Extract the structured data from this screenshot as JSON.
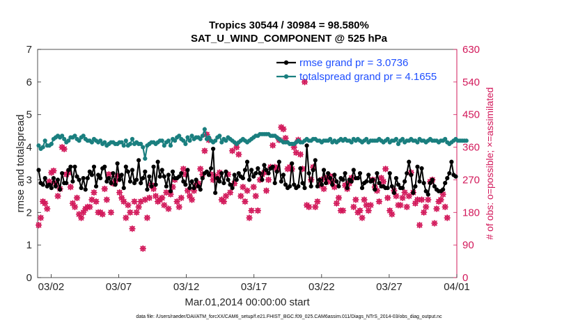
{
  "chart_data": {
    "type": "line",
    "title": "Tropics 30544 / 30984 = 98.580%",
    "subtitle": "SAT_U_WIND_COMPONENT @ 525 hPa",
    "xlabel": "Mar.01,2014 00:00:00 start",
    "ylabel_left": "rmse and totalspread",
    "ylabel_right": "# of obs: o=possible; ×=assimilated",
    "ylim_left": [
      0,
      7
    ],
    "ylim_right": [
      0,
      630
    ],
    "xlim": [
      0,
      31.0
    ],
    "left_ticks": [
      "0",
      "1",
      "2",
      "3",
      "4",
      "5",
      "6",
      "7"
    ],
    "right_ticks": [
      "0",
      "90",
      "180",
      "270",
      "360",
      "450",
      "540",
      "630"
    ],
    "x_ticks": [
      {
        "label": "03/02",
        "value": 1.0
      },
      {
        "label": "03/07",
        "value": 6.0
      },
      {
        "label": "03/12",
        "value": 11.0
      },
      {
        "label": "03/17",
        "value": 16.0
      },
      {
        "label": "03/22",
        "value": 21.0
      },
      {
        "label": "03/27",
        "value": 26.0
      },
      {
        "label": "04/01",
        "value": 31.0
      }
    ],
    "series": [
      {
        "name": "rmse grand pr = 3.0736",
        "color": "#000000",
        "values": [
          3.3,
          2.9,
          2.85,
          3.05,
          2.8,
          2.85,
          2.75,
          3.05,
          2.8,
          3.0,
          2.7,
          3.2,
          2.9,
          2.9,
          3.3,
          3.4,
          2.95,
          3.4,
          3.1,
          3.0,
          2.75,
          3.05,
          2.7,
          3.05,
          3.25,
          3.15,
          3.4,
          2.8,
          3.15,
          3.05,
          3.35,
          3.4,
          2.95,
          3.05,
          2.9,
          3.2,
          2.85,
          3.5,
          3.0,
          3.15,
          2.75,
          3.4,
          3.25,
          2.95,
          3.3,
          2.9,
          3.0,
          3.6,
          2.9,
          3.05,
          3.25,
          2.7,
          3.1,
          2.8,
          3.4,
          2.85,
          3.55,
          3.1,
          3.3,
          3.1,
          2.8,
          3.15,
          2.65,
          3.25,
          3.05,
          3.05,
          3.1,
          3.2,
          2.95,
          2.85,
          3.3,
          2.75,
          2.95,
          2.75,
          3.0,
          2.8,
          2.7,
          3.05,
          3.2,
          3.25,
          3.15,
          3.35,
          3.95,
          2.6,
          3.05,
          2.95,
          3.2,
          2.9,
          3.25,
          3.0,
          2.85,
          2.75,
          3.15,
          3.0,
          3.2,
          3.1,
          3.05,
          3.3,
          3.55,
          3.0,
          3.3,
          3.1,
          3.2,
          3.35,
          3.2,
          3.0,
          3.45,
          3.3,
          3.2,
          3.35,
          3.4,
          2.9,
          3.25,
          3.55,
          2.95,
          3.15,
          2.85,
          2.75,
          2.8,
          3.5,
          2.85,
          2.75,
          2.8,
          3.35,
          2.9,
          2.75,
          4.05,
          3.2,
          2.8,
          3.3,
          3.6,
          2.8,
          3.0,
          2.85,
          3.3,
          2.9,
          3.2,
          3.05,
          2.85,
          3.15,
          2.95,
          2.8,
          3.05,
          3.0,
          3.2,
          2.75,
          3.0,
          2.95,
          3.3,
          3.05,
          3.05,
          3.2,
          2.75,
          2.9,
          2.95,
          3.15,
          2.95,
          3.0,
          2.7,
          3.2,
          2.9,
          2.8,
          2.8,
          2.75,
          2.75,
          3.2,
          2.8,
          2.6,
          3.05,
          2.85,
          2.75,
          2.75,
          2.95,
          3.2,
          3.55,
          3.15,
          2.6,
          2.8,
          3.4,
          2.95,
          3.35,
          2.9,
          2.65,
          2.55,
          2.9,
          3.0,
          2.8,
          2.7,
          2.65,
          2.65,
          2.7,
          2.9,
          3.05,
          3.2,
          3.55,
          3.15,
          3.1
        ]
      },
      {
        "name": "totalspread grand pr = 4.1655",
        "color": "#1a7f7f",
        "values": [
          4.05,
          3.95,
          4.0,
          4.2,
          4.05,
          4.05,
          4.1,
          4.25,
          4.3,
          4.35,
          4.3,
          4.35,
          4.25,
          4.15,
          4.2,
          4.3,
          4.3,
          4.35,
          4.25,
          4.2,
          4.3,
          4.35,
          4.25,
          4.2,
          4.2,
          4.15,
          4.25,
          4.2,
          4.15,
          4.2,
          4.1,
          4.15,
          4.05,
          4.1,
          4.15,
          4.15,
          4.1,
          4.1,
          4.15,
          4.15,
          4.05,
          4.2,
          4.05,
          4.1,
          4.25,
          4.1,
          4.15,
          4.1,
          4.1,
          4.0,
          3.65,
          4.05,
          4.1,
          4.15,
          4.15,
          4.1,
          4.15,
          4.2,
          4.2,
          4.05,
          4.15,
          4.2,
          4.05,
          4.25,
          4.2,
          4.3,
          4.35,
          4.25,
          4.2,
          4.1,
          4.3,
          4.2,
          4.35,
          4.25,
          4.3,
          4.3,
          4.25,
          4.35,
          4.55,
          4.25,
          4.3,
          4.2,
          4.15,
          4.2,
          4.3,
          4.35,
          4.15,
          4.25,
          4.2,
          4.3,
          4.25,
          4.2,
          4.15,
          4.1,
          4.15,
          4.2,
          4.25,
          4.2,
          4.15,
          4.2,
          4.25,
          4.3,
          4.35,
          4.35,
          4.4,
          4.4,
          4.4,
          4.4,
          4.4,
          4.35,
          4.35,
          4.35,
          4.3,
          4.25,
          4.2,
          4.15,
          4.15,
          4.15,
          4.1,
          4.1,
          4.1,
          4.15,
          4.2,
          4.15,
          4.15,
          4.2,
          4.25,
          4.2,
          4.2,
          4.25,
          4.25,
          4.2,
          4.2,
          4.15,
          4.2,
          4.2,
          4.2,
          4.25,
          4.15,
          4.2,
          4.15,
          4.2,
          4.25,
          4.2,
          4.25,
          4.2,
          4.2,
          4.15,
          4.25,
          4.2,
          4.25,
          4.2,
          4.15,
          4.2,
          4.25,
          4.15,
          4.2,
          4.2,
          4.2,
          4.2,
          4.25,
          4.2,
          4.15,
          4.2,
          4.25,
          4.15,
          4.2,
          4.2,
          4.25,
          4.1,
          4.2,
          4.25,
          4.15,
          4.2,
          4.2,
          4.25,
          4.2,
          4.2,
          4.15,
          4.25,
          4.2,
          4.2,
          4.15,
          4.2,
          4.25,
          4.2,
          4.2,
          4.2,
          4.15,
          4.2,
          4.2,
          4.25,
          4.15,
          4.1,
          4.15,
          4.2,
          4.25,
          4.2,
          4.2,
          4.2,
          4.2,
          4.2
        ]
      },
      {
        "name": "obs possible",
        "color": "#d2185a",
        "axis": "right",
        "marker": "o",
        "values": [
          145,
          165,
          210,
          205,
          190,
          265,
          290,
          295,
          260,
          225,
          245,
          360,
          355,
          285,
          290,
          250,
          205,
          195,
          220,
          175,
          165,
          180,
          190,
          195,
          195,
          215,
          235,
          210,
          180,
          180,
          175,
          245,
          215,
          285,
          180,
          260,
          265,
          280,
          235,
          220,
          210,
          165,
          200,
          180,
          135,
          210,
          180,
          195,
          210,
          80,
          215,
          165,
          220,
          255,
          245,
          225,
          210,
          215,
          220,
          200,
          235,
          190,
          230,
          250,
          270,
          210,
          195,
          220,
          300,
          285,
          240,
          225,
          215,
          240,
          255,
          260,
          300,
          285,
          350,
          395,
          380,
          285,
          270,
          280,
          275,
          290,
          215,
          210,
          225,
          285,
          235,
          350,
          260,
          360,
          340,
          225,
          250,
          210,
          240,
          165,
          185,
          250,
          225,
          185,
          270,
          285,
          290,
          240,
          270,
          305,
          365,
          305,
          300,
          380,
          415,
          410,
          385,
          300,
          305,
          300,
          360,
          345,
          380,
          340,
          300,
          540,
          200,
          195,
          270,
          305,
          195,
          210,
          255,
          270,
          245,
          275,
          265,
          280,
          265,
          250,
          205,
          220,
          185,
          185,
          255,
          245,
          260,
          275,
          195,
          215,
          180,
          185,
          165,
          215,
          200,
          185,
          200,
          270,
          250,
          240,
          210,
          275,
          265,
          300,
          220,
          185,
          175,
          240,
          225,
          200,
          200,
          220,
          235,
          195,
          225,
          290,
          235,
          205,
          215,
          145,
          215,
          180,
          195,
          215,
          265,
          270,
          150,
          190,
          210,
          215,
          230,
          195,
          165
        ]
      },
      {
        "name": "obs assimilated",
        "color": "#d2185a",
        "axis": "right",
        "marker": "x",
        "values": [
          145,
          165,
          210,
          205,
          190,
          265,
          290,
          295,
          260,
          225,
          245,
          360,
          355,
          285,
          290,
          250,
          205,
          195,
          220,
          175,
          165,
          180,
          190,
          195,
          195,
          215,
          235,
          210,
          180,
          180,
          175,
          245,
          215,
          285,
          180,
          260,
          265,
          280,
          235,
          220,
          210,
          165,
          200,
          180,
          135,
          210,
          180,
          195,
          210,
          80,
          215,
          165,
          220,
          255,
          245,
          225,
          210,
          215,
          220,
          200,
          235,
          190,
          230,
          250,
          270,
          210,
          195,
          220,
          300,
          285,
          240,
          225,
          215,
          240,
          255,
          260,
          300,
          285,
          350,
          395,
          380,
          285,
          270,
          280,
          275,
          290,
          215,
          210,
          225,
          285,
          235,
          350,
          260,
          360,
          340,
          225,
          250,
          210,
          240,
          165,
          185,
          250,
          225,
          185,
          270,
          285,
          290,
          240,
          270,
          305,
          365,
          305,
          300,
          380,
          415,
          410,
          385,
          300,
          305,
          300,
          360,
          345,
          380,
          340,
          300,
          540,
          200,
          195,
          270,
          305,
          195,
          210,
          255,
          270,
          245,
          275,
          265,
          280,
          265,
          250,
          205,
          220,
          185,
          185,
          255,
          245,
          260,
          275,
          195,
          215,
          180,
          185,
          165,
          215,
          200,
          185,
          200,
          270,
          250,
          240,
          210,
          275,
          265,
          300,
          220,
          185,
          175,
          240,
          225,
          200,
          200,
          220,
          235,
          195,
          225,
          290,
          235,
          205,
          215,
          145,
          215,
          180,
          195,
          215,
          265,
          270,
          150,
          190,
          210,
          215,
          230,
          195,
          165
        ]
      }
    ],
    "legend": [
      {
        "label": "rmse grand pr = 3.0736",
        "color": "#000000"
      },
      {
        "label": "totalspread grand pr = 4.1655",
        "color": "#1a7f7f"
      }
    ],
    "legend_position": "top-right",
    "grid": false
  },
  "footer": "data file: /Users/raeder/DAI/ATM_forcXX/CAM6_setup/f.e21.FHIST_BGC.f09_025.CAM6assim.011/Diags_NTrS_2014-03/obs_diag_output.nc"
}
